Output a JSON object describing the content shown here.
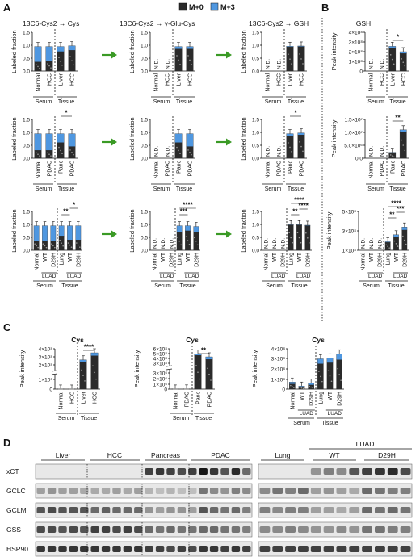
{
  "legend": {
    "items": [
      {
        "label": "M+0",
        "color": "#2b2b2b"
      },
      {
        "label": "M+3",
        "color": "#4f97e0"
      }
    ]
  },
  "panel_labels": [
    "A",
    "B",
    "C",
    "D"
  ],
  "titles": {
    "a1": "13C6-Cys2 → Cys",
    "a2": "13C6-Cys2 → γ-Glu-Cys",
    "a3": "13C6-Cys2 → GSH",
    "b": "GSH",
    "c": "Cys"
  },
  "axis_labels": {
    "fraction": "Labeled fraction",
    "intensity": "Peak intensity"
  },
  "group_labels": {
    "serum": "Serum",
    "tissue": "Tissue",
    "luad": "LUAD"
  },
  "row_categories": {
    "row1": [
      "Normal",
      "HCC",
      "Liver",
      "HCC"
    ],
    "row2": [
      "Normal",
      "PDAC",
      "Panc",
      "PDAC"
    ],
    "row3": [
      "Normal",
      "WT",
      "D29H",
      "Lung",
      "WT",
      "D29H"
    ]
  },
  "not_detected": "N.D.",
  "panel_b_ticks": {
    "row1": [
      "4×10⁸",
      "3×10⁸",
      "2×10⁸",
      "1×10⁸",
      "0"
    ],
    "row2": [
      "1.5×10⁷",
      "1.0×10⁷",
      "5.0×10⁶",
      "0.0"
    ],
    "row3": [
      "5×10⁸",
      "3×10⁸",
      "1×10⁸"
    ]
  },
  "panel_c_ticks": {
    "c1": [
      "4×10⁸",
      "3×10⁸",
      "2×10⁸",
      "1×10⁶",
      "0"
    ],
    "c2": [
      "6×10⁸",
      "5×10⁸",
      "4×10⁸",
      "3×10⁸",
      "3×10⁶",
      "2×10⁶",
      "1×10⁶",
      "0"
    ],
    "c3": [
      "4×10⁸",
      "3×10⁸",
      "2×10⁸",
      "1×10⁸",
      "0"
    ]
  },
  "fraction_ticks": [
    "1.5",
    "1.0",
    "0.5",
    "0.0"
  ],
  "significance": {
    "a_r2c1": "*",
    "a_r2c3": "*",
    "a_r3c1_a": "**",
    "a_r3c1_b": "*",
    "a_r3c2_a": "****",
    "a_r3c2_b": "***",
    "a_r3c3_a": "****",
    "a_r3c3_b": "****",
    "a_r3c3_c": "**",
    "b_r1": "*",
    "b_r2": "**",
    "b_r3_a": "****",
    "b_r3_b": "***",
    "b_r3_c": "**",
    "c1": "****",
    "c2": "**"
  },
  "blot": {
    "groups_left": [
      "Liver",
      "HCC",
      "Pancreas",
      "PDAC"
    ],
    "groups_right": [
      "Lung",
      "WT",
      "D29H"
    ],
    "header_right": "LUAD",
    "rows": [
      "xCT",
      "GCLC",
      "GCLM",
      "GSS",
      "HSP90"
    ]
  },
  "chart_data": [
    {
      "type": "bar",
      "panel": "A-row1-col1",
      "stacked": true,
      "categories": [
        "Normal",
        "HCC",
        "Liver",
        "HCC"
      ],
      "series": [
        {
          "name": "M+0",
          "values": [
            0.35,
            0.4,
            0.75,
            0.8
          ]
        },
        {
          "name": "M+3",
          "values": [
            0.6,
            0.55,
            0.2,
            0.18
          ]
        }
      ],
      "ylabel": "Labeled fraction",
      "ylim": [
        0,
        1.5
      ]
    },
    {
      "type": "bar",
      "panel": "A-row1-col2",
      "stacked": true,
      "categories": [
        "Normal",
        "HCC",
        "Liver",
        "HCC"
      ],
      "series": [
        {
          "name": "M+0",
          "values": [
            null,
            null,
            0.85,
            0.85
          ]
        },
        {
          "name": "M+3",
          "values": [
            null,
            null,
            0.1,
            0.1
          ]
        }
      ],
      "ylabel": "Labeled fraction",
      "ylim": [
        0,
        1.5
      ]
    },
    {
      "type": "bar",
      "panel": "A-row1-col3",
      "stacked": true,
      "categories": [
        "Normal",
        "HCC",
        "Liver",
        "HCC"
      ],
      "series": [
        {
          "name": "M+0",
          "values": [
            null,
            null,
            0.93,
            0.94
          ]
        },
        {
          "name": "M+3",
          "values": [
            null,
            null,
            0.03,
            0.03
          ]
        }
      ],
      "ylabel": "Labeled fraction",
      "ylim": [
        0,
        1.5
      ]
    },
    {
      "type": "bar",
      "panel": "A-row2-col1",
      "stacked": true,
      "categories": [
        "Normal",
        "PDAC",
        "Panc",
        "PDAC"
      ],
      "series": [
        {
          "name": "M+0",
          "values": [
            0.3,
            0.3,
            0.6,
            0.45
          ]
        },
        {
          "name": "M+3",
          "values": [
            0.65,
            0.65,
            0.35,
            0.5
          ]
        }
      ],
      "ylabel": "Labeled fraction",
      "ylim": [
        0,
        1.5
      ]
    },
    {
      "type": "bar",
      "panel": "A-row2-col2",
      "stacked": true,
      "categories": [
        "Normal",
        "PDAC",
        "Panc",
        "PDAC"
      ],
      "series": [
        {
          "name": "M+0",
          "values": [
            null,
            null,
            0.6,
            0.45
          ]
        },
        {
          "name": "M+3",
          "values": [
            null,
            null,
            0.35,
            0.5
          ]
        }
      ],
      "ylabel": "Labeled fraction",
      "ylim": [
        0,
        1.5
      ]
    },
    {
      "type": "bar",
      "panel": "A-row2-col3",
      "stacked": true,
      "categories": [
        "Normal",
        "PDAC",
        "Panc",
        "PDAC"
      ],
      "series": [
        {
          "name": "M+0",
          "values": [
            null,
            null,
            0.85,
            0.9
          ]
        },
        {
          "name": "M+3",
          "values": [
            null,
            null,
            0.1,
            0.08
          ]
        }
      ],
      "ylabel": "Labeled fraction",
      "ylim": [
        0,
        1.5
      ]
    },
    {
      "type": "bar",
      "panel": "A-row3-col1",
      "stacked": true,
      "categories": [
        "Normal",
        "WT",
        "D29H",
        "Lung",
        "WT",
        "D29H"
      ],
      "series": [
        {
          "name": "M+0",
          "values": [
            0.35,
            0.35,
            0.35,
            0.55,
            0.4,
            0.4
          ]
        },
        {
          "name": "M+3",
          "values": [
            0.6,
            0.6,
            0.6,
            0.4,
            0.55,
            0.55
          ]
        }
      ],
      "ylabel": "Labeled fraction",
      "ylim": [
        0,
        1.5
      ]
    },
    {
      "type": "bar",
      "panel": "A-row3-col2",
      "stacked": true,
      "categories": [
        "Normal",
        "WT",
        "D29H",
        "Lung",
        "WT",
        "D29H"
      ],
      "series": [
        {
          "name": "M+0",
          "values": [
            null,
            null,
            null,
            0.7,
            0.75,
            0.7
          ]
        },
        {
          "name": "M+3",
          "values": [
            null,
            null,
            null,
            0.25,
            0.2,
            0.22
          ]
        }
      ],
      "ylabel": "Labeled fraction",
      "ylim": [
        0,
        1.5
      ]
    },
    {
      "type": "bar",
      "panel": "A-row3-col3",
      "stacked": true,
      "categories": [
        "Normal",
        "WT",
        "D29H",
        "Lung",
        "WT",
        "D29H"
      ],
      "series": [
        {
          "name": "M+0",
          "values": [
            null,
            null,
            null,
            0.97,
            0.97,
            0.95
          ]
        },
        {
          "name": "M+3",
          "values": [
            null,
            null,
            null,
            0.02,
            0.02,
            0.02
          ]
        }
      ],
      "ylabel": "Labeled fraction",
      "ylim": [
        0,
        1.5
      ]
    },
    {
      "type": "bar",
      "panel": "B-row1",
      "stacked": true,
      "categories": [
        "Normal",
        "HCC",
        "Liver",
        "HCC"
      ],
      "series": [
        {
          "name": "M+0",
          "values": [
            null,
            null,
            240000000,
            180000000
          ]
        },
        {
          "name": "M+3",
          "values": [
            null,
            null,
            15000000,
            20000000
          ]
        }
      ],
      "ylabel": "Peak intensity",
      "ylim": [
        0,
        400000000
      ]
    },
    {
      "type": "bar",
      "panel": "B-row2",
      "stacked": true,
      "categories": [
        "Normal",
        "PDAC",
        "Panc",
        "PDAC"
      ],
      "series": [
        {
          "name": "M+0",
          "values": [
            null,
            null,
            1800000,
            10000000
          ]
        },
        {
          "name": "M+3",
          "values": [
            null,
            null,
            500000,
            1000000
          ]
        }
      ],
      "ylabel": "Peak intensity",
      "ylim": [
        0,
        15000000
      ]
    },
    {
      "type": "bar",
      "panel": "B-row3",
      "stacked": true,
      "categories": [
        "Normal",
        "WT",
        "D29H",
        "Lung",
        "WT",
        "D29H"
      ],
      "series": [
        {
          "name": "M+0",
          "values": [
            null,
            null,
            null,
            100000000,
            170000000,
            260000000
          ]
        },
        {
          "name": "M+3",
          "values": [
            null,
            null,
            null,
            10000000,
            30000000,
            40000000
          ]
        }
      ],
      "ylabel": "Peak intensity",
      "ylim": [
        0,
        500000000
      ]
    },
    {
      "type": "bar",
      "panel": "C-1",
      "stacked": true,
      "categories": [
        "Normal",
        "HCC",
        "Liver",
        "HCC"
      ],
      "series": [
        {
          "name": "M+0",
          "values": [
            400000,
            300000,
            270000000,
            330000000
          ]
        },
        {
          "name": "M+3",
          "values": [
            100000,
            100000,
            20000000,
            30000000
          ]
        }
      ],
      "ylabel": "Peak intensity"
    },
    {
      "type": "bar",
      "panel": "C-2",
      "stacked": true,
      "categories": [
        "Normal",
        "PDAC",
        "Panc",
        "PDAC"
      ],
      "series": [
        {
          "name": "M+0",
          "values": [
            1000000,
            1500000,
            500000000,
            440000000
          ]
        },
        {
          "name": "M+3",
          "values": [
            300000,
            400000,
            20000000,
            40000000
          ]
        }
      ],
      "ylabel": "Peak intensity"
    },
    {
      "type": "bar",
      "panel": "C-3",
      "stacked": true,
      "categories": [
        "Normal",
        "WT",
        "D29H",
        "Lung",
        "WT",
        "D29H"
      ],
      "series": [
        {
          "name": "M+0",
          "values": [
            50000000,
            20000000,
            40000000,
            250000000,
            260000000,
            290000000
          ]
        },
        {
          "name": "M+3",
          "values": [
            20000000,
            10000000,
            20000000,
            50000000,
            50000000,
            60000000
          ]
        }
      ],
      "ylabel": "Peak intensity",
      "ylim": [
        0,
        400000000
      ]
    }
  ]
}
